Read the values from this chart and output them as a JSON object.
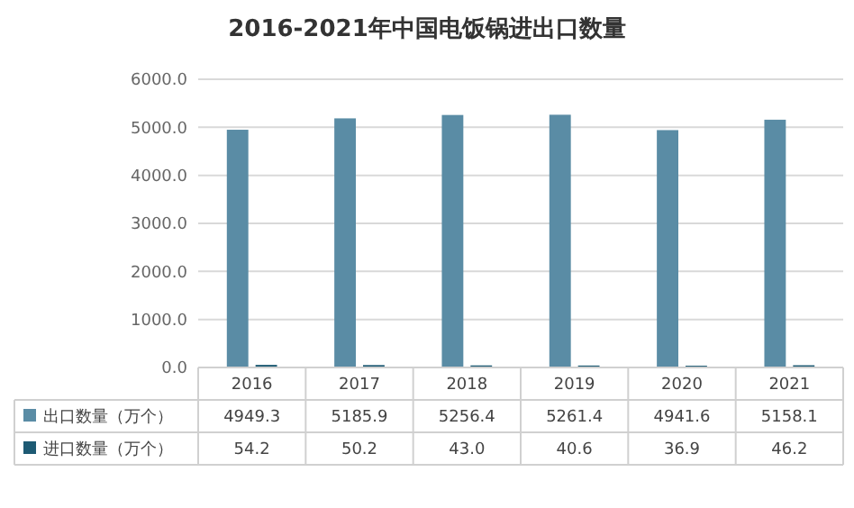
{
  "chart_data": {
    "type": "bar",
    "title": "2016-2021年中国电饭锅进出口数量",
    "categories": [
      "2016",
      "2017",
      "2018",
      "2019",
      "2020",
      "2021"
    ],
    "series": [
      {
        "name": "出口数量（万个）",
        "color": "#5a8ca5",
        "values": [
          4949.3,
          5185.9,
          5256.4,
          5261.4,
          4941.6,
          5158.1
        ],
        "value_labels": [
          "4949.3",
          "5185.9",
          "5256.4",
          "5261.4",
          "4941.6",
          "5158.1"
        ]
      },
      {
        "name": "进口数量（万个）",
        "color": "#1d5a73",
        "values": [
          54.2,
          50.2,
          43.0,
          40.6,
          36.9,
          46.2
        ],
        "value_labels": [
          "54.2",
          "50.2",
          "43.0",
          "40.6",
          "36.9",
          "46.2"
        ]
      }
    ],
    "ylim": [
      0,
      6000
    ],
    "yticks": [
      {
        "value": 0,
        "label": "0.0"
      },
      {
        "value": 1000,
        "label": "1000.0"
      },
      {
        "value": 2000,
        "label": "2000.0"
      },
      {
        "value": 3000,
        "label": "3000.0"
      },
      {
        "value": 4000,
        "label": "4000.0"
      },
      {
        "value": 5000,
        "label": "5000.0"
      },
      {
        "value": 6000,
        "label": "6000.0"
      }
    ],
    "grid": "y",
    "legend": "bottom"
  }
}
